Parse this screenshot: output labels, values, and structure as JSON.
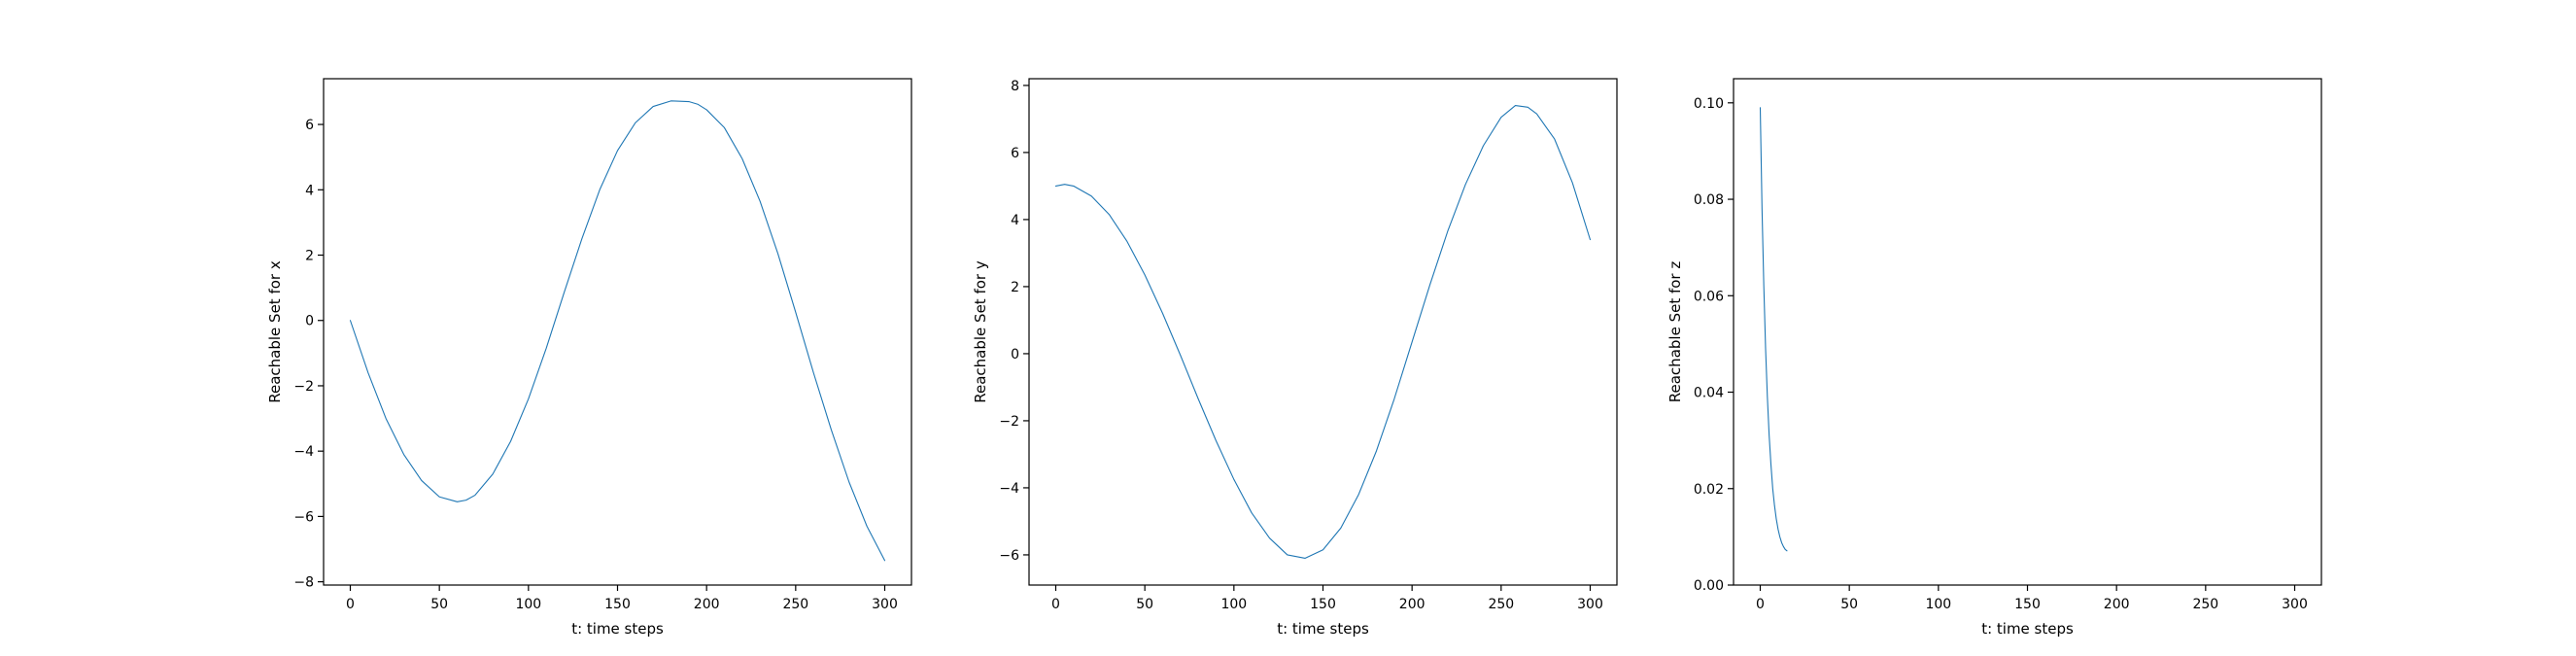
{
  "figure": {
    "line_color": "#1f77b4"
  },
  "chart_data": [
    {
      "type": "line",
      "xlabel": "t: time steps",
      "ylabel": "Reachable Set for x",
      "xlim": [
        -15,
        315
      ],
      "ylim": [
        -8.1,
        7.4
      ],
      "xticks": [
        0,
        50,
        100,
        150,
        200,
        250,
        300
      ],
      "yticks": [
        -8,
        -6,
        -4,
        -2,
        0,
        2,
        4,
        6
      ],
      "ytick_decimals": 0,
      "grid": false,
      "series": [
        {
          "x": [
            0,
            10,
            20,
            30,
            40,
            50,
            60,
            65,
            70,
            80,
            90,
            100,
            110,
            120,
            130,
            140,
            150,
            160,
            170,
            180,
            190,
            195,
            200,
            210,
            220,
            230,
            240,
            250,
            260,
            270,
            280,
            290,
            300
          ],
          "values": [
            0.0,
            -1.6,
            -3.0,
            -4.1,
            -4.9,
            -5.4,
            -5.55,
            -5.5,
            -5.35,
            -4.7,
            -3.7,
            -2.4,
            -0.85,
            0.85,
            2.5,
            4.0,
            5.2,
            6.05,
            6.55,
            6.72,
            6.7,
            6.62,
            6.45,
            5.9,
            4.95,
            3.65,
            2.05,
            0.25,
            -1.6,
            -3.35,
            -4.95,
            -6.3,
            -7.35
          ]
        }
      ]
    },
    {
      "type": "line",
      "xlabel": "t: time steps",
      "ylabel": "Reachable Set for y",
      "xlim": [
        -15,
        315
      ],
      "ylim": [
        -6.9,
        8.2
      ],
      "xticks": [
        0,
        50,
        100,
        150,
        200,
        250,
        300
      ],
      "yticks": [
        -6,
        -4,
        -2,
        0,
        2,
        4,
        6,
        8
      ],
      "ytick_decimals": 0,
      "grid": false,
      "series": [
        {
          "x": [
            0,
            5,
            10,
            20,
            30,
            40,
            50,
            60,
            70,
            80,
            90,
            100,
            110,
            120,
            130,
            140,
            150,
            160,
            170,
            180,
            190,
            200,
            210,
            220,
            230,
            240,
            250,
            258,
            265,
            270,
            280,
            290,
            300
          ],
          "values": [
            5.0,
            5.05,
            5.0,
            4.7,
            4.15,
            3.35,
            2.35,
            1.2,
            -0.05,
            -1.35,
            -2.6,
            -3.75,
            -4.75,
            -5.5,
            -6.0,
            -6.1,
            -5.85,
            -5.2,
            -4.2,
            -2.9,
            -1.35,
            0.35,
            2.05,
            3.65,
            5.05,
            6.2,
            7.05,
            7.4,
            7.35,
            7.15,
            6.4,
            5.1,
            3.4
          ]
        }
      ]
    },
    {
      "type": "line",
      "xlabel": "t: time steps",
      "ylabel": "Reachable Set for z",
      "xlim": [
        -15,
        315
      ],
      "ylim": [
        0,
        0.105
      ],
      "xticks": [
        0,
        50,
        100,
        150,
        200,
        250,
        300
      ],
      "yticks": [
        0.0,
        0.02,
        0.04,
        0.06,
        0.08,
        0.1
      ],
      "ytick_decimals": 2,
      "grid": false,
      "series": [
        {
          "x": [
            0,
            1,
            2,
            3,
            4,
            5,
            6,
            7,
            8,
            9,
            10,
            11,
            12,
            13,
            14,
            15
          ],
          "values": [
            0.099,
            0.078,
            0.062,
            0.049,
            0.039,
            0.031,
            0.025,
            0.02,
            0.0165,
            0.0137,
            0.0116,
            0.01,
            0.0088,
            0.008,
            0.0074,
            0.0071
          ]
        }
      ]
    }
  ]
}
